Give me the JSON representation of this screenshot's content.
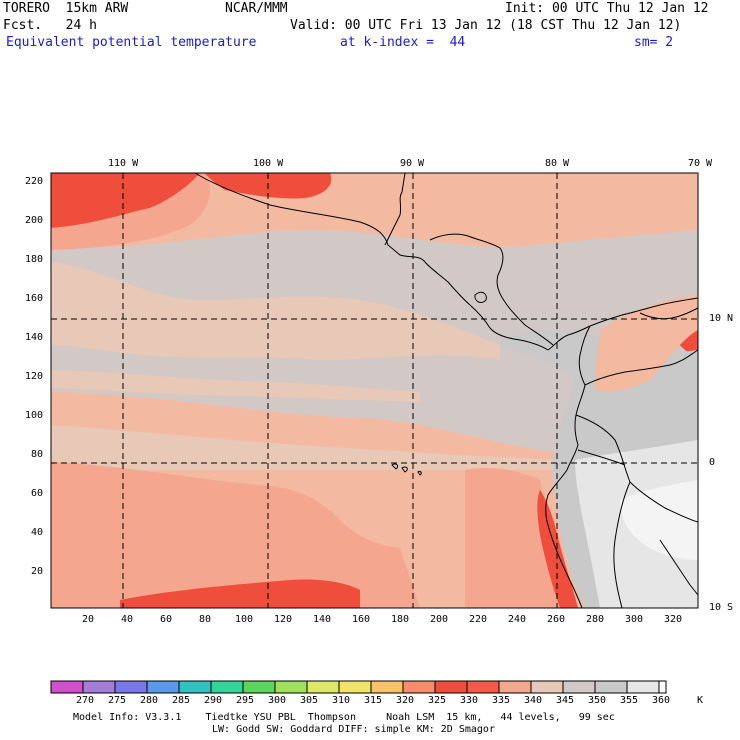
{
  "header": {
    "model": "TORERO  15km ARW",
    "org": "NCAR/MMM",
    "init": "Init: 00 UTC Thu 12 Jan 12",
    "fcst": "Fcst.   24 h",
    "valid": "Valid: 00 UTC Fri 13 Jan 12 (18 CST Thu 12 Jan 12)",
    "field": "Equivalent potential temperature",
    "level": "at k-index =  44",
    "smooth": "sm= 2"
  },
  "map": {
    "top_labels": [
      "110 W",
      "100 W",
      "90 W",
      "80 W",
      "70 W"
    ],
    "right_labels": [
      "10 N",
      "0",
      "10 S"
    ],
    "left_ticks": [
      "220",
      "200",
      "180",
      "160",
      "140",
      "120",
      "100",
      "80",
      "60",
      "40",
      "20"
    ],
    "bottom_ticks": [
      "20",
      "40",
      "60",
      "80",
      "100",
      "120",
      "140",
      "160",
      "180",
      "200",
      "220",
      "240",
      "260",
      "280",
      "300",
      "320"
    ],
    "grid_style": "dashed",
    "colors": {
      "c325": "#f58c6b",
      "c330": "#ef4e3c",
      "c335": "#f4a78e",
      "c340": "#f3b9a1",
      "c345": "#e8c8b6",
      "c350": "#d2c9c6",
      "c355": "#c9c9c9",
      "c360": "#e6e6e6",
      "c365": "#f4f4f4"
    }
  },
  "colorbar": {
    "labels": [
      "270",
      "275",
      "280",
      "285",
      "290",
      "295",
      "300",
      "305",
      "310",
      "315",
      "320",
      "325",
      "330",
      "335",
      "340",
      "345",
      "350",
      "355",
      "360"
    ],
    "unit": "K",
    "colors": [
      "#d050d0",
      "#a67cd9",
      "#7a78e6",
      "#5b9ae8",
      "#33c2c2",
      "#33d39a",
      "#5dd55d",
      "#9fe05c",
      "#dde86a",
      "#f2e36a",
      "#f9c26a",
      "#f58c6b",
      "#ef4e3c",
      "#f35a4a",
      "#f4a78e",
      "#e8c8b6",
      "#d2c9c6",
      "#c9c9c9",
      "#e6e6e6",
      "#ffffff"
    ]
  },
  "footer": {
    "line1": "Model Info: V3.3.1    Tiedtke YSU PBL  Thompson     Noah LSM  15 km,   44 levels,   99 sec",
    "line2": "LW: Godd SW: Goddard DIFF: simple KM: 2D Smagor"
  }
}
